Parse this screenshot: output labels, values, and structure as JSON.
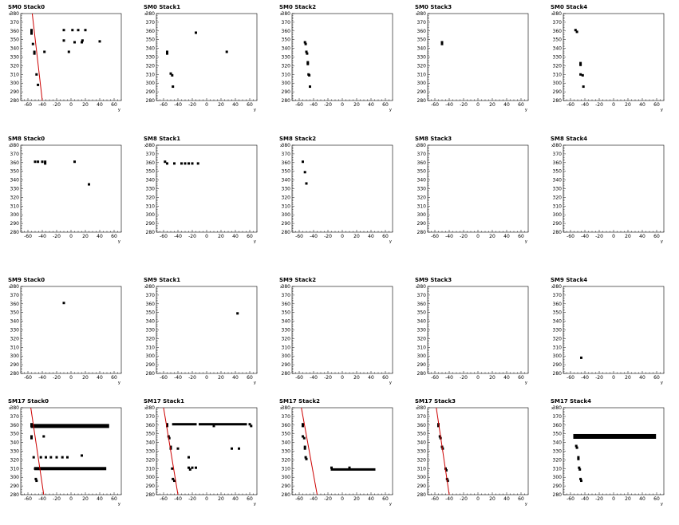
{
  "chart_data": [
    {
      "type": "scatter",
      "title": "SM0 Stack0",
      "xlabel": "y",
      "ylabel": "x",
      "xlim": [
        -70,
        70
      ],
      "ylim": [
        280,
        380
      ],
      "xticks": [
        -60,
        -40,
        -20,
        0,
        20,
        40,
        60
      ],
      "yticks": [
        280,
        290,
        300,
        310,
        320,
        330,
        340,
        350,
        360,
        370,
        380
      ],
      "points": [
        [
          -55,
          361
        ],
        [
          -55,
          359
        ],
        [
          -55,
          357
        ],
        [
          -53,
          345
        ],
        [
          -51,
          336
        ],
        [
          -51,
          334
        ],
        [
          -48,
          310
        ],
        [
          -46,
          298
        ],
        [
          -37,
          336
        ],
        [
          -10,
          361
        ],
        [
          -10,
          349
        ],
        [
          -3,
          336
        ],
        [
          2,
          361
        ],
        [
          5,
          347
        ],
        [
          10,
          361
        ],
        [
          15,
          347
        ],
        [
          16,
          349
        ],
        [
          20,
          361
        ],
        [
          40,
          348
        ]
      ],
      "line": [
        [
          -54,
          380
        ],
        [
          -40,
          280
        ]
      ]
    },
    {
      "type": "scatter",
      "title": "SM0 Stack1",
      "xlabel": "y",
      "ylabel": "x",
      "xlim": [
        -70,
        70
      ],
      "ylim": [
        280,
        380
      ],
      "xticks": [
        -60,
        -40,
        -20,
        0,
        20,
        40,
        60
      ],
      "yticks": [
        280,
        290,
        300,
        310,
        320,
        330,
        340,
        350,
        360,
        370,
        380
      ],
      "points": [
        [
          -55,
          336
        ],
        [
          -55,
          334
        ],
        [
          -50,
          311
        ],
        [
          -48,
          309
        ],
        [
          -47,
          296
        ],
        [
          -15,
          358
        ],
        [
          28,
          336
        ]
      ]
    },
    {
      "type": "scatter",
      "title": "SM0 Stack2",
      "xlabel": "y",
      "ylabel": "x",
      "xlim": [
        -70,
        70
      ],
      "ylim": [
        280,
        380
      ],
      "xticks": [
        -60,
        -40,
        -20,
        0,
        20,
        40,
        60
      ],
      "yticks": [
        280,
        290,
        300,
        310,
        320,
        330,
        340,
        350,
        360,
        370,
        380
      ],
      "points": [
        [
          -52,
          347
        ],
        [
          -51,
          345
        ],
        [
          -50,
          336
        ],
        [
          -49,
          334
        ],
        [
          -48,
          324
        ],
        [
          -48,
          322
        ],
        [
          -47,
          310
        ],
        [
          -46,
          309
        ],
        [
          -45,
          296
        ]
      ]
    },
    {
      "type": "scatter",
      "title": "SM0 Stack3",
      "xlabel": "y",
      "ylabel": "x",
      "xlim": [
        -70,
        70
      ],
      "ylim": [
        280,
        380
      ],
      "xticks": [
        -60,
        -40,
        -20,
        0,
        20,
        40,
        60
      ],
      "yticks": [
        280,
        290,
        300,
        310,
        320,
        330,
        340,
        350,
        360,
        370,
        380
      ],
      "points": [
        [
          -50,
          347
        ],
        [
          -50,
          345
        ]
      ]
    },
    {
      "type": "scatter",
      "title": "SM0 Stack4",
      "xlabel": "y",
      "ylabel": "x",
      "xlim": [
        -70,
        70
      ],
      "ylim": [
        280,
        380
      ],
      "xticks": [
        -60,
        -40,
        -20,
        0,
        20,
        40,
        60
      ],
      "yticks": [
        280,
        290,
        300,
        310,
        320,
        330,
        340,
        350,
        360,
        370,
        380
      ],
      "points": [
        [
          -53,
          361
        ],
        [
          -51,
          359
        ],
        [
          -46,
          323
        ],
        [
          -46,
          321
        ],
        [
          -46,
          310
        ],
        [
          -43,
          309
        ],
        [
          -42,
          296
        ]
      ]
    },
    {
      "type": "scatter",
      "title": "SM8 Stack0",
      "xlabel": "y",
      "ylabel": "x",
      "xlim": [
        -70,
        70
      ],
      "ylim": [
        280,
        380
      ],
      "xticks": [
        -60,
        -40,
        -20,
        0,
        20,
        40,
        60
      ],
      "yticks": [
        280,
        290,
        300,
        310,
        320,
        330,
        340,
        350,
        360,
        370,
        380
      ],
      "points": [
        [
          -50,
          361
        ],
        [
          -46,
          361
        ],
        [
          -40,
          361
        ],
        [
          -36,
          361
        ],
        [
          -36,
          359
        ],
        [
          5,
          361
        ],
        [
          25,
          335
        ]
      ]
    },
    {
      "type": "scatter",
      "title": "SM8 Stack1",
      "xlabel": "y",
      "ylabel": "x",
      "xlim": [
        -70,
        70
      ],
      "ylim": [
        280,
        380
      ],
      "xticks": [
        -60,
        -40,
        -20,
        0,
        20,
        40,
        60
      ],
      "yticks": [
        280,
        290,
        300,
        310,
        320,
        330,
        340,
        350,
        360,
        370,
        380
      ],
      "points": [
        [
          -58,
          361
        ],
        [
          -55,
          359
        ],
        [
          -45,
          359
        ],
        [
          -35,
          359
        ],
        [
          -30,
          359
        ],
        [
          -25,
          359
        ],
        [
          -20,
          359
        ],
        [
          -12,
          359
        ]
      ]
    },
    {
      "type": "scatter",
      "title": "SM8 Stack2",
      "xlabel": "y",
      "ylabel": "x",
      "xlim": [
        -70,
        70
      ],
      "ylim": [
        280,
        380
      ],
      "xticks": [
        -60,
        -40,
        -20,
        0,
        20,
        40,
        60
      ],
      "yticks": [
        280,
        290,
        300,
        310,
        320,
        330,
        340,
        350,
        360,
        370,
        380
      ],
      "points": [
        [
          -55,
          361
        ],
        [
          -52,
          349
        ],
        [
          -50,
          336
        ]
      ]
    },
    {
      "type": "scatter",
      "title": "SM8 Stack3",
      "xlabel": "y",
      "ylabel": "x",
      "xlim": [
        -70,
        70
      ],
      "ylim": [
        280,
        380
      ],
      "xticks": [
        -60,
        -40,
        -20,
        0,
        20,
        40,
        60
      ],
      "yticks": [
        280,
        290,
        300,
        310,
        320,
        330,
        340,
        350,
        360,
        370,
        380
      ],
      "points": []
    },
    {
      "type": "scatter",
      "title": "SM8 Stack4",
      "xlabel": "y",
      "ylabel": "x",
      "xlim": [
        -70,
        70
      ],
      "ylim": [
        280,
        380
      ],
      "xticks": [
        -60,
        -40,
        -20,
        0,
        20,
        40,
        60
      ],
      "yticks": [
        280,
        290,
        300,
        310,
        320,
        330,
        340,
        350,
        360,
        370,
        380
      ],
      "points": []
    },
    {
      "type": "scatter",
      "title": "SM9 Stack0",
      "xlabel": "y",
      "ylabel": "x",
      "xlim": [
        -70,
        70
      ],
      "ylim": [
        280,
        380
      ],
      "xticks": [
        -60,
        -40,
        -20,
        0,
        20,
        40,
        60
      ],
      "yticks": [
        280,
        290,
        300,
        310,
        320,
        330,
        340,
        350,
        360,
        370,
        380
      ],
      "points": [
        [
          -10,
          361
        ]
      ]
    },
    {
      "type": "scatter",
      "title": "SM9 Stack1",
      "xlabel": "y",
      "ylabel": "x",
      "xlim": [
        -70,
        70
      ],
      "ylim": [
        280,
        380
      ],
      "xticks": [
        -60,
        -40,
        -20,
        0,
        20,
        40,
        60
      ],
      "yticks": [
        280,
        290,
        300,
        310,
        320,
        330,
        340,
        350,
        360,
        370,
        380
      ],
      "points": [
        [
          43,
          349
        ]
      ]
    },
    {
      "type": "scatter",
      "title": "SM9 Stack2",
      "xlabel": "y",
      "ylabel": "x",
      "xlim": [
        -70,
        70
      ],
      "ylim": [
        280,
        380
      ],
      "xticks": [
        -60,
        -40,
        -20,
        0,
        20,
        40,
        60
      ],
      "yticks": [
        280,
        290,
        300,
        310,
        320,
        330,
        340,
        350,
        360,
        370,
        380
      ],
      "points": []
    },
    {
      "type": "scatter",
      "title": "SM9 Stack3",
      "xlabel": "y",
      "ylabel": "x",
      "xlim": [
        -70,
        70
      ],
      "ylim": [
        280,
        380
      ],
      "xticks": [
        -60,
        -40,
        -20,
        0,
        20,
        40,
        60
      ],
      "yticks": [
        280,
        290,
        300,
        310,
        320,
        330,
        340,
        350,
        360,
        370,
        380
      ],
      "points": []
    },
    {
      "type": "scatter",
      "title": "SM9 Stack4",
      "xlabel": "y",
      "ylabel": "x",
      "xlim": [
        -70,
        70
      ],
      "ylim": [
        280,
        380
      ],
      "xticks": [
        -60,
        -40,
        -20,
        0,
        20,
        40,
        60
      ],
      "yticks": [
        280,
        290,
        300,
        310,
        320,
        330,
        340,
        350,
        360,
        370,
        380
      ],
      "points": [
        [
          -45,
          298
        ]
      ]
    },
    {
      "type": "scatter",
      "title": "SM17 Stack0",
      "xlabel": "y",
      "ylabel": "x",
      "xlim": [
        -70,
        70
      ],
      "ylim": [
        280,
        380
      ],
      "xticks": [
        -60,
        -40,
        -20,
        0,
        20,
        40,
        60
      ],
      "yticks": [
        280,
        290,
        300,
        310,
        320,
        330,
        340,
        350,
        360,
        370,
        380
      ],
      "points": [
        [
          -55,
          361
        ],
        [
          -55,
          359
        ],
        [
          -55,
          347
        ],
        [
          -55,
          345
        ],
        [
          -52,
          323
        ],
        [
          -50,
          310
        ],
        [
          -49,
          298
        ],
        [
          -48,
          296
        ],
        [
          -38,
          347
        ],
        [
          -42,
          323
        ],
        [
          -35,
          323
        ],
        [
          -28,
          323
        ],
        [
          -20,
          323
        ],
        [
          -12,
          323
        ],
        [
          -5,
          323
        ],
        [
          15,
          325
        ]
      ],
      "bands": [
        {
          "x": [
            -55,
            52
          ],
          "y": 359,
          "thick": 5
        },
        {
          "x": [
            -50,
            48
          ],
          "y": 310,
          "thick": 4
        }
      ],
      "line": [
        [
          -56,
          380
        ],
        [
          -38,
          280
        ]
      ]
    },
    {
      "type": "scatter",
      "title": "SM17 Stack1",
      "xlabel": "y",
      "ylabel": "x",
      "xlim": [
        -70,
        70
      ],
      "ylim": [
        280,
        380
      ],
      "xticks": [
        -60,
        -40,
        -20,
        0,
        20,
        40,
        60
      ],
      "yticks": [
        280,
        290,
        300,
        310,
        320,
        330,
        340,
        350,
        360,
        370,
        380
      ],
      "points": [
        [
          -55,
          361
        ],
        [
          -55,
          359
        ],
        [
          -53,
          347
        ],
        [
          -52,
          345
        ],
        [
          -50,
          335
        ],
        [
          -50,
          333
        ],
        [
          -48,
          310
        ],
        [
          -47,
          298
        ],
        [
          -45,
          296
        ],
        [
          -40,
          333
        ],
        [
          -25,
          323
        ],
        [
          -25,
          311
        ],
        [
          -23,
          309
        ],
        [
          -20,
          311
        ],
        [
          -15,
          311
        ],
        [
          10,
          359
        ],
        [
          35,
          333
        ],
        [
          45,
          333
        ],
        [
          60,
          361
        ],
        [
          62,
          359
        ]
      ],
      "bands": [
        {
          "x": [
            -47,
            -15
          ],
          "y": 361,
          "thick": 3
        },
        {
          "x": [
            -10,
            55
          ],
          "y": 361,
          "thick": 3
        }
      ],
      "line": [
        [
          -60,
          380
        ],
        [
          -40,
          280
        ]
      ]
    },
    {
      "type": "scatter",
      "title": "SM17 Stack2",
      "xlabel": "y",
      "ylabel": "x",
      "xlim": [
        -70,
        70
      ],
      "ylim": [
        280,
        380
      ],
      "xticks": [
        -60,
        -40,
        -20,
        0,
        20,
        40,
        60
      ],
      "yticks": [
        280,
        290,
        300,
        310,
        320,
        330,
        340,
        350,
        360,
        370,
        380
      ],
      "points": [
        [
          -55,
          361
        ],
        [
          -55,
          359
        ],
        [
          -55,
          347
        ],
        [
          -53,
          345
        ],
        [
          -52,
          335
        ],
        [
          -52,
          333
        ],
        [
          -51,
          323
        ],
        [
          -50,
          321
        ],
        [
          -15,
          311
        ],
        [
          10,
          311
        ]
      ],
      "bands": [
        {
          "x": [
            -15,
            45
          ],
          "y": 309,
          "thick": 3
        }
      ],
      "line": [
        [
          -57,
          380
        ],
        [
          -35,
          280
        ]
      ]
    },
    {
      "type": "scatter",
      "title": "SM17 Stack3",
      "xlabel": "y",
      "ylabel": "x",
      "xlim": [
        -70,
        70
      ],
      "ylim": [
        280,
        380
      ],
      "xticks": [
        -60,
        -40,
        -20,
        0,
        20,
        40,
        60
      ],
      "yticks": [
        280,
        290,
        300,
        310,
        320,
        330,
        340,
        350,
        360,
        370,
        380
      ],
      "points": [
        [
          -55,
          361
        ],
        [
          -55,
          359
        ],
        [
          -53,
          347
        ],
        [
          -52,
          345
        ],
        [
          -50,
          335
        ],
        [
          -49,
          333
        ],
        [
          -45,
          310
        ],
        [
          -44,
          308
        ],
        [
          -43,
          298
        ],
        [
          -42,
          296
        ]
      ],
      "line": [
        [
          -58,
          380
        ],
        [
          -40,
          280
        ]
      ]
    },
    {
      "type": "scatter",
      "title": "SM17 Stack4",
      "xlabel": "y",
      "ylabel": "x",
      "xlim": [
        -70,
        70
      ],
      "ylim": [
        280,
        380
      ],
      "xticks": [
        -60,
        -40,
        -20,
        0,
        20,
        40,
        60
      ],
      "yticks": [
        280,
        290,
        300,
        310,
        320,
        330,
        340,
        350,
        360,
        370,
        380
      ],
      "points": [
        [
          -52,
          336
        ],
        [
          -51,
          334
        ],
        [
          -49,
          323
        ],
        [
          -49,
          321
        ],
        [
          -48,
          311
        ],
        [
          -47,
          309
        ],
        [
          -46,
          298
        ],
        [
          -45,
          296
        ]
      ],
      "bands": [
        {
          "x": [
            -55,
            58
          ],
          "y": 347,
          "thick": 6
        }
      ]
    }
  ],
  "colors": {
    "points": "#000000",
    "fit_line": "#cc0000",
    "frame": "#000000"
  }
}
